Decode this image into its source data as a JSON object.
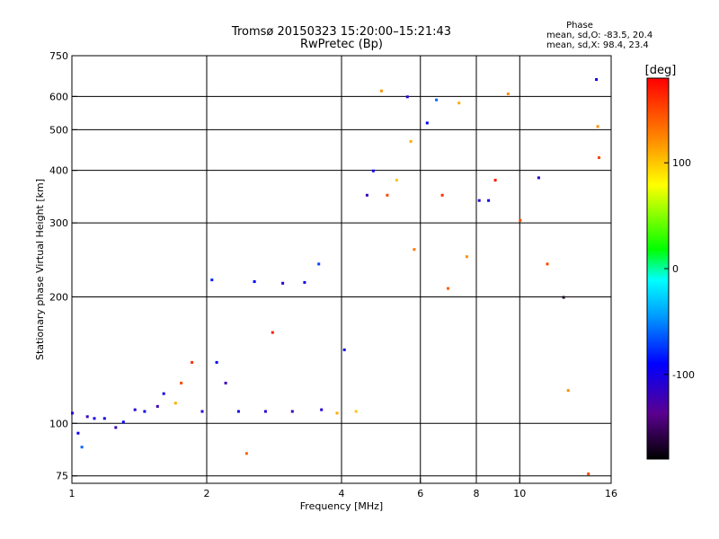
{
  "chart_data": {
    "type": "scatter",
    "title_line1": "Tromsø 20150323 15:20:00–15:21:43",
    "title_line2": "RwPretec (Bp)",
    "phase_box": {
      "heading": "Phase",
      "line_o": "mean, sd,O: -83.5, 20.4",
      "line_x": "mean, sd,X:  98.4, 23.4"
    },
    "xlabel": "Frequency [MHz]",
    "ylabel": "Stationary phase Virtual Height [km]",
    "x_scale": "log",
    "y_scale": "log",
    "xlim": [
      1,
      16
    ],
    "ylim": [
      72,
      750
    ],
    "x_ticks": [
      1,
      2,
      4,
      6,
      8,
      10,
      16
    ],
    "x_tick_labels": [
      "1",
      "2",
      "4",
      "6",
      "8",
      "10",
      "16"
    ],
    "y_ticks": [
      75,
      100,
      200,
      300,
      400,
      500,
      600,
      750
    ],
    "y_tick_labels": [
      "75",
      "100",
      "200",
      "300",
      "400",
      "500",
      "600",
      "750"
    ],
    "grid": true,
    "colorbar": {
      "label": "[deg]",
      "range": [
        -180,
        180
      ],
      "ticks": [
        100,
        0,
        -100
      ],
      "tick_labels": [
        "100",
        "0",
        "-100"
      ]
    },
    "series": [
      {
        "values": [
          {
            "x": 1.0,
            "y": 106,
            "c": -110
          },
          {
            "x": 1.03,
            "y": 95,
            "c": -95
          },
          {
            "x": 1.05,
            "y": 88,
            "c": -60
          },
          {
            "x": 1.08,
            "y": 104,
            "c": -120
          },
          {
            "x": 1.12,
            "y": 103,
            "c": -105
          },
          {
            "x": 1.18,
            "y": 103,
            "c": -100
          },
          {
            "x": 1.25,
            "y": 98,
            "c": -120
          },
          {
            "x": 1.3,
            "y": 101,
            "c": -90
          },
          {
            "x": 1.38,
            "y": 108,
            "c": -110
          },
          {
            "x": 1.45,
            "y": 107,
            "c": -95
          },
          {
            "x": 1.55,
            "y": 110,
            "c": -120
          },
          {
            "x": 1.6,
            "y": 118,
            "c": -100
          },
          {
            "x": 1.7,
            "y": 112,
            "c": 110
          },
          {
            "x": 1.75,
            "y": 125,
            "c": 150
          },
          {
            "x": 1.85,
            "y": 140,
            "c": 160
          },
          {
            "x": 1.95,
            "y": 107,
            "c": -110
          },
          {
            "x": 2.05,
            "y": 220,
            "c": -80
          },
          {
            "x": 2.1,
            "y": 140,
            "c": -90
          },
          {
            "x": 2.2,
            "y": 125,
            "c": -120
          },
          {
            "x": 2.35,
            "y": 107,
            "c": -100
          },
          {
            "x": 2.45,
            "y": 85,
            "c": 140
          },
          {
            "x": 2.55,
            "y": 218,
            "c": -90
          },
          {
            "x": 2.7,
            "y": 107,
            "c": -110
          },
          {
            "x": 2.8,
            "y": 165,
            "c": 170
          },
          {
            "x": 2.95,
            "y": 216,
            "c": -105
          },
          {
            "x": 3.1,
            "y": 107,
            "c": -120
          },
          {
            "x": 3.3,
            "y": 217,
            "c": -95
          },
          {
            "x": 3.55,
            "y": 240,
            "c": -70
          },
          {
            "x": 3.6,
            "y": 108,
            "c": -110
          },
          {
            "x": 3.9,
            "y": 106,
            "c": 110
          },
          {
            "x": 4.05,
            "y": 150,
            "c": -100
          },
          {
            "x": 4.3,
            "y": 107,
            "c": 100
          },
          {
            "x": 4.55,
            "y": 350,
            "c": -120
          },
          {
            "x": 4.7,
            "y": 400,
            "c": -100
          },
          {
            "x": 4.9,
            "y": 620,
            "c": 120
          },
          {
            "x": 5.05,
            "y": 350,
            "c": 150
          },
          {
            "x": 5.3,
            "y": 380,
            "c": 100
          },
          {
            "x": 5.6,
            "y": 600,
            "c": -110
          },
          {
            "x": 5.7,
            "y": 470,
            "c": 110
          },
          {
            "x": 5.8,
            "y": 260,
            "c": 130
          },
          {
            "x": 6.2,
            "y": 520,
            "c": -90
          },
          {
            "x": 6.5,
            "y": 590,
            "c": -60
          },
          {
            "x": 6.7,
            "y": 350,
            "c": 160
          },
          {
            "x": 6.9,
            "y": 210,
            "c": 140
          },
          {
            "x": 7.3,
            "y": 580,
            "c": 110
          },
          {
            "x": 7.6,
            "y": 250,
            "c": 120
          },
          {
            "x": 8.1,
            "y": 340,
            "c": -110
          },
          {
            "x": 8.5,
            "y": 340,
            "c": -100
          },
          {
            "x": 8.8,
            "y": 380,
            "c": 170
          },
          {
            "x": 9.4,
            "y": 610,
            "c": 120
          },
          {
            "x": 10.0,
            "y": 305,
            "c": 150
          },
          {
            "x": 11.0,
            "y": 385,
            "c": -110
          },
          {
            "x": 11.5,
            "y": 240,
            "c": 150
          },
          {
            "x": 12.5,
            "y": 200,
            "c": -170
          },
          {
            "x": 12.8,
            "y": 120,
            "c": 120
          },
          {
            "x": 14.2,
            "y": 76,
            "c": 150
          },
          {
            "x": 14.8,
            "y": 660,
            "c": -100
          },
          {
            "x": 14.9,
            "y": 510,
            "c": 120
          },
          {
            "x": 15.0,
            "y": 430,
            "c": 150
          }
        ]
      }
    ]
  }
}
